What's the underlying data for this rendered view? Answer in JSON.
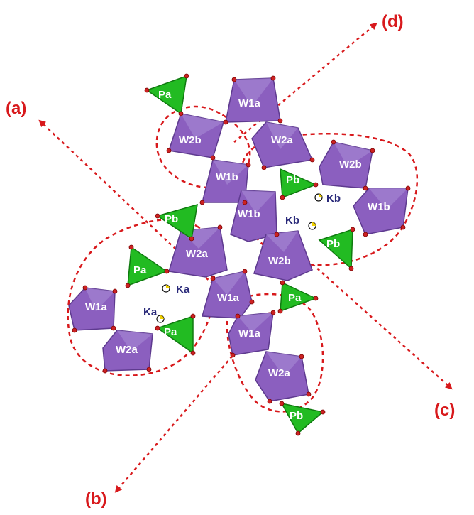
{
  "colors": {
    "octahedron": "#8b5fbf",
    "octahedron_dark": "#5e3a8f",
    "octahedron_light": "#a98bd6",
    "tetrahedron": "#22bb22",
    "tetrahedron_dark": "#0f7a0f",
    "oxygen": "#cc2222",
    "axis": "#d8191c",
    "k_label": "#2a2a7a"
  },
  "axes": {
    "a": "(a)",
    "b": "(b)",
    "c": "(c)",
    "d": "(d)"
  },
  "octahedra": {
    "w1a_top": "W1a",
    "w2b_top": "W2b",
    "w2a_top": "W2a",
    "w1b_mid": "W1b",
    "w2b_right": "W2b",
    "w1b_center": "W1b",
    "w1b_right": "W1b",
    "w2a_mid": "W2a",
    "w2b_center": "W2b",
    "w1a_left": "W1a",
    "w1a_center": "W1a",
    "w2a_bottomleft": "W2a",
    "w1a_lower": "W1a",
    "w2a_lower": "W2a"
  },
  "tetrahedra": {
    "pa_top": "Pa",
    "pb_upper": "Pb",
    "pb_mid": "Pb",
    "pb_right": "Pb",
    "pa_left": "Pa",
    "pa_center": "Pa",
    "pa_bottom": "Pa",
    "pb_bottom": "Pb"
  },
  "k_sites": {
    "kb1": "Kb",
    "kb2": "Kb",
    "ka1": "Ka",
    "ka2": "Ka"
  }
}
